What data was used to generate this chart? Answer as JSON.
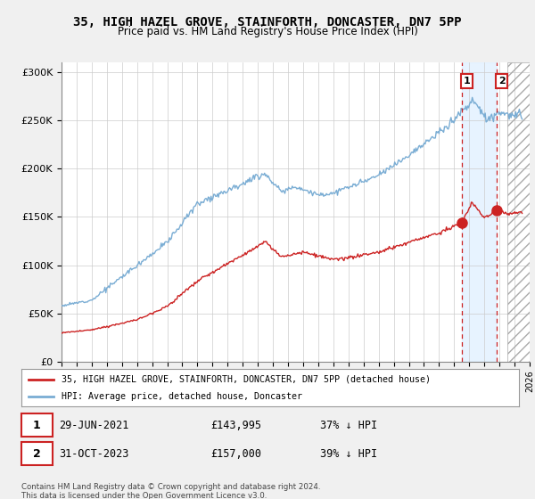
{
  "title": "35, HIGH HAZEL GROVE, STAINFORTH, DONCASTER, DN7 5PP",
  "subtitle": "Price paid vs. HM Land Registry's House Price Index (HPI)",
  "ylim": [
    0,
    310000
  ],
  "yticks": [
    0,
    50000,
    100000,
    150000,
    200000,
    250000,
    300000
  ],
  "ytick_labels": [
    "£0",
    "£50K",
    "£100K",
    "£150K",
    "£200K",
    "£250K",
    "£300K"
  ],
  "hpi_color": "#7aadd4",
  "sold_color": "#cc2222",
  "dashed_vline_color": "#cc2222",
  "plot_bg_color": "#ffffff",
  "fig_bg_color": "#f0f0f0",
  "legend_label_sold": "35, HIGH HAZEL GROVE, STAINFORTH, DONCASTER, DN7 5PP (detached house)",
  "legend_label_hpi": "HPI: Average price, detached house, Doncaster",
  "sale1_date_label": "29-JUN-2021",
  "sale1_price": 143995,
  "sale1_pct": "37% ↓ HPI",
  "sale1_year": 2021.5,
  "sale2_date_label": "31-OCT-2023",
  "sale2_price": 157000,
  "sale2_pct": "39% ↓ HPI",
  "sale2_year": 2023.83,
  "footer": "Contains HM Land Registry data © Crown copyright and database right 2024.\nThis data is licensed under the Open Government Licence v3.0.",
  "xmin": 1995,
  "xmax": 2026,
  "hatch_start": 2024.5,
  "shade_start": 2021.5,
  "shade_end": 2023.83
}
